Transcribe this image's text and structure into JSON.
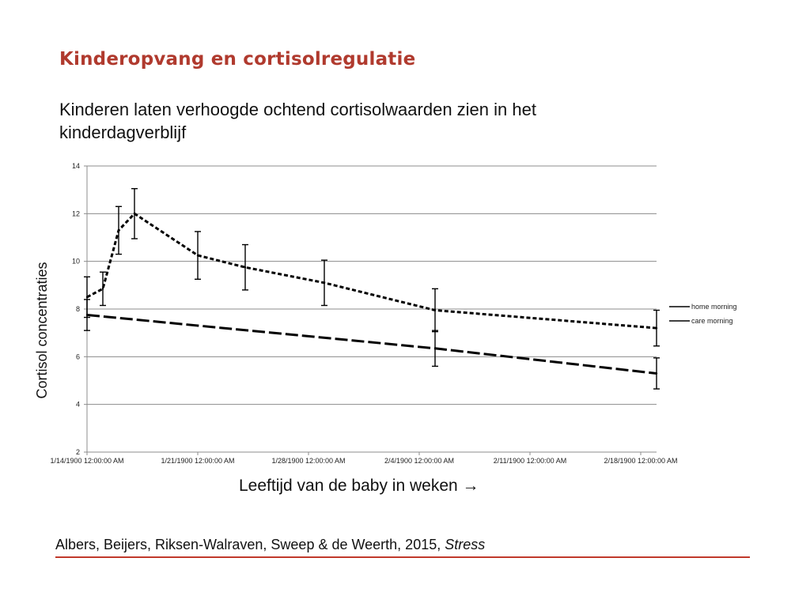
{
  "slide": {
    "title": "Kinderopvang en cortisolregulatie",
    "subtitle": "Kinderen laten verhoogde ochtend cortisolwaarden zien in het kinderdagverblijf",
    "xlabel_prefix": "Leeftijd van de baby in weken",
    "xlabel_arrow": "→",
    "citation_authors": "Albers, Beijers, Riksen-Walraven, Sweep & de Weerth, 2015, ",
    "citation_journal": "Stress",
    "accent_color": "#b03a2e"
  },
  "chart_data": {
    "type": "line",
    "title": "",
    "xlabel": "Leeftijd van de baby in weken →",
    "ylabel": "Cortisol concentraties",
    "ylim": [
      2,
      14
    ],
    "yticks": [
      2,
      4,
      6,
      8,
      10,
      12,
      14
    ],
    "xlim": [
      "1/14/1900 12:00:00 AM",
      "2/19/1900 12:00:00 AM"
    ],
    "xticks": [
      {
        "date": "1900-01-14",
        "label": "1/14/1900 12:00:00 AM"
      },
      {
        "date": "1900-01-21",
        "label": "1/21/1900 12:00:00 AM"
      },
      {
        "date": "1900-01-28",
        "label": "1/28/1900 12:00:00 AM"
      },
      {
        "date": "1900-02-04",
        "label": "2/4/1900 12:00:00 AM"
      },
      {
        "date": "1900-02-11",
        "label": "2/11/1900 12:00:00 AM"
      },
      {
        "date": "1900-02-18",
        "label": "2/18/1900 12:00:00 AM"
      }
    ],
    "grid": true,
    "legend_position": "right",
    "series": [
      {
        "name": "home morning",
        "style": "long-dash",
        "points": [
          {
            "x": "1900-01-14",
            "y": 7.75,
            "err": 0.65
          },
          {
            "x": "1900-02-05",
            "y": 6.35,
            "err": 0.75
          },
          {
            "x": "1900-02-19",
            "y": 5.3,
            "err": 0.65
          }
        ]
      },
      {
        "name": "care morning",
        "style": "short-dash",
        "points": [
          {
            "x": "1900-01-14",
            "y": 8.5,
            "err": 0.85
          },
          {
            "x": "1900-01-15",
            "y": 8.85,
            "err": 0.7
          },
          {
            "x": "1900-01-16",
            "y": 11.3,
            "err": 1.0
          },
          {
            "x": "1900-01-17",
            "y": 12.0,
            "err": 1.05
          },
          {
            "x": "1900-01-21",
            "y": 10.25,
            "err": 1.0
          },
          {
            "x": "1900-01-24",
            "y": 9.75,
            "err": 0.95
          },
          {
            "x": "1900-01-29",
            "y": 9.1,
            "err": 0.95
          },
          {
            "x": "1900-02-05",
            "y": 7.95,
            "err": 0.9
          },
          {
            "x": "1900-02-19",
            "y": 7.2,
            "err": 0.75
          }
        ]
      }
    ]
  }
}
